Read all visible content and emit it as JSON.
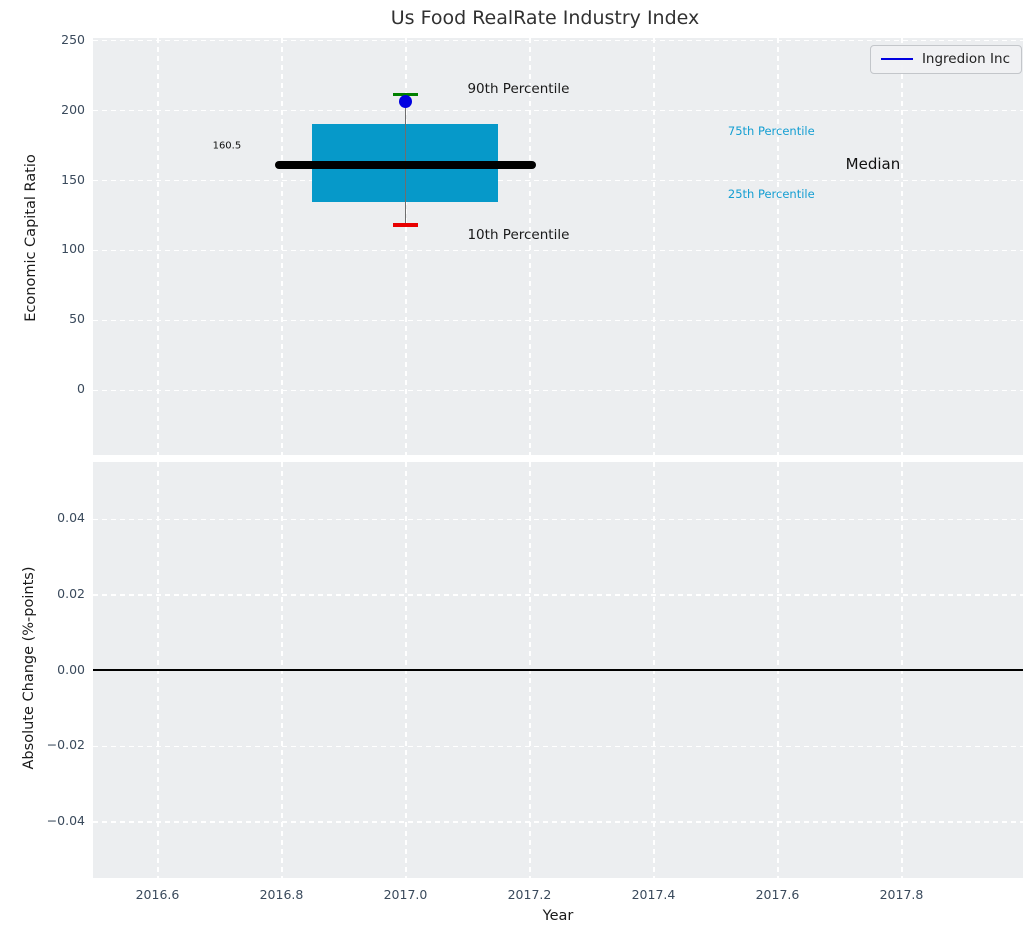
{
  "figure": {
    "title": "Us Food RealRate Industry Index"
  },
  "legend": {
    "label": "Ingredion Inc"
  },
  "colors": {
    "figure_bg": "#ffffff",
    "axes_bg": "#eceef0",
    "grid": "#ffffff",
    "box_fill": "#0699c9",
    "median_line": "#000000",
    "whisker": "#6e6e6e",
    "cap_90": "#008000",
    "cap_10": "#e80000",
    "marker": "#0000e0",
    "legend_line": "#0000e0",
    "zero_line": "#000000",
    "tick_label": "#3a4a5c",
    "percentile_text": "#149ed2"
  },
  "chart_data": {
    "type": "boxplot",
    "title": "Us Food RealRate Industry Index",
    "x": {
      "label": "Year",
      "lim": [
        2016.496,
        2017.996
      ],
      "ticks": [
        2016.6,
        2016.8,
        2017.0,
        2017.2,
        2017.4,
        2017.6,
        2017.8
      ],
      "tick_labels": [
        "2016.6",
        "2016.8",
        "2017.0",
        "2017.2",
        "2017.4",
        "2017.6",
        "2017.8"
      ]
    },
    "top_plot": {
      "ylabel": "Economic Capital Ratio",
      "ylim": [
        -46.5,
        251.5
      ],
      "yticks": [
        0,
        50,
        100,
        150,
        200,
        250
      ],
      "ytick_labels": [
        "0",
        "50",
        "100",
        "150",
        "200",
        "250"
      ],
      "series_label": "Ingredion Inc",
      "box": {
        "x": 2017.0,
        "p10": 118,
        "p25": 134.5,
        "median": 160.5,
        "p75": 190,
        "p90": 211,
        "company_value": 206,
        "box_half_width": 0.15,
        "median_half_width": 0.21,
        "cap_half_width": 0.02
      },
      "annotations": [
        {
          "id": "90th-percentile-label",
          "text": "90th Percentile",
          "x": 2017.1,
          "y": 215,
          "size": 13.5,
          "color": "#1a1a1a",
          "anchor": "left"
        },
        {
          "id": "10th-percentile-label",
          "text": "10th Percentile",
          "x": 2017.1,
          "y": 111,
          "size": 13.5,
          "color": "#1a1a1a",
          "anchor": "left"
        },
        {
          "id": "75th-percentile-label",
          "text": "75th Percentile",
          "x": 2017.52,
          "y": 185,
          "size": 11.5,
          "color": "#149ed2",
          "anchor": "left"
        },
        {
          "id": "25th-percentile-label",
          "text": "25th Percentile",
          "x": 2017.52,
          "y": 140,
          "size": 11.5,
          "color": "#149ed2",
          "anchor": "left"
        },
        {
          "id": "median-label",
          "text": "Median",
          "x": 2017.71,
          "y": 161.5,
          "size": 15,
          "color": "#111111",
          "anchor": "left"
        },
        {
          "id": "median-value-label",
          "text": "160.5",
          "x": 2016.712,
          "y": 174,
          "size": 10,
          "color": "#111111",
          "anchor": "center"
        }
      ]
    },
    "bottom_plot": {
      "ylabel": "Absolute Change (%-points)",
      "ylim": [
        -0.055,
        0.055
      ],
      "yticks": [
        0.04,
        0.02,
        0,
        -0.02,
        -0.04
      ],
      "ytick_labels": [
        "0.04",
        "0.02",
        "0.00",
        "−0.02",
        "−0.04"
      ],
      "zero_line_y": 0
    }
  }
}
